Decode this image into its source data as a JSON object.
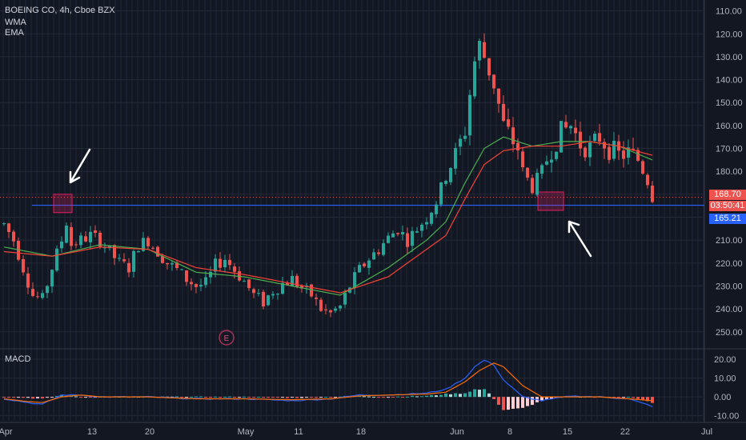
{
  "header": {
    "symbol": "BOEING CO, 4h, Cboe BZX",
    "indicators": [
      "WMA",
      "EMA"
    ]
  },
  "price_axis": {
    "ticks": [
      "250.00",
      "240.00",
      "230.00",
      "220.00",
      "210.00",
      "200.00",
      "190.00",
      "180.00",
      "170.00",
      "160.00",
      "150.00",
      "140.00",
      "130.00",
      "120.00",
      "110.00"
    ]
  },
  "macd_axis": {
    "label": "MACD",
    "ticks": [
      "20.00",
      "10.00",
      "0.00",
      "-10.00"
    ]
  },
  "time_axis": {
    "ticks": [
      "Apr",
      "13",
      "20",
      "May",
      "11",
      "18",
      "Jun",
      "8",
      "15",
      "22",
      "Jul"
    ]
  },
  "price_labels": {
    "last": "168.70",
    "countdown": "03:50:41",
    "line": "165.21"
  },
  "earnings_marker": "E",
  "colors": {
    "background": "#131722",
    "up": "#26a69a",
    "down": "#ef5350",
    "wma": "#4caf50",
    "ema": "#f44336",
    "macd_line": "#2962ff",
    "signal_line": "#ff6d00",
    "horizontal_line": "#2962ff",
    "highlight_box": "#e91e63"
  },
  "chart_data": [
    {
      "type": "candlestick",
      "title": "BOEING CO, 4h, Cboe BZX",
      "ylim": [
        104,
        253
      ],
      "x_ticks": [
        "Apr",
        "13",
        "20",
        "May",
        "11",
        "18",
        "Jun",
        "8",
        "15",
        "22",
        "Jul"
      ],
      "y_ticks": [
        110,
        120,
        130,
        140,
        150,
        160,
        170,
        180,
        190,
        200,
        210,
        220,
        230,
        240,
        250
      ],
      "horizontal_line": 165.21,
      "last_price": 168.7,
      "anchors": [
        [
          0,
          157
        ],
        [
          2,
          150
        ],
        [
          4,
          138
        ],
        [
          6,
          126
        ],
        [
          8,
          124
        ],
        [
          10,
          138
        ],
        [
          12,
          150
        ],
        [
          13,
          158
        ],
        [
          14,
          148
        ],
        [
          16,
          150
        ],
        [
          18,
          152
        ],
        [
          20,
          150
        ],
        [
          22,
          145
        ],
        [
          24,
          140
        ],
        [
          26,
          138
        ],
        [
          28,
          148
        ],
        [
          30,
          150
        ],
        [
          32,
          145
        ],
        [
          34,
          140
        ],
        [
          36,
          137
        ],
        [
          38,
          133
        ],
        [
          40,
          130
        ],
        [
          42,
          131
        ],
        [
          44,
          139
        ],
        [
          46,
          142
        ],
        [
          48,
          137
        ],
        [
          50,
          132
        ],
        [
          52,
          126
        ],
        [
          54,
          123
        ],
        [
          56,
          128
        ],
        [
          58,
          131
        ],
        [
          60,
          133
        ],
        [
          62,
          129
        ],
        [
          64,
          126
        ],
        [
          66,
          120
        ],
        [
          68,
          118
        ],
        [
          70,
          121
        ],
        [
          72,
          130
        ],
        [
          74,
          137
        ],
        [
          76,
          142
        ],
        [
          78,
          146
        ],
        [
          80,
          151
        ],
        [
          82,
          155
        ],
        [
          84,
          150
        ],
        [
          86,
          155
        ],
        [
          88,
          160
        ],
        [
          90,
          167
        ],
        [
          92,
          178
        ],
        [
          94,
          187
        ],
        [
          96,
          198
        ],
        [
          97,
          214
        ],
        [
          98,
          228
        ],
        [
          99,
          235
        ],
        [
          100,
          230
        ],
        [
          102,
          218
        ],
        [
          104,
          200
        ],
        [
          106,
          193
        ],
        [
          107,
          190
        ],
        [
          108,
          180
        ],
        [
          110,
          173
        ],
        [
          112,
          180
        ],
        [
          114,
          190
        ],
        [
          116,
          197
        ],
        [
          118,
          200
        ],
        [
          120,
          192
        ],
        [
          122,
          190
        ],
        [
          124,
          195
        ],
        [
          126,
          190
        ],
        [
          128,
          187
        ],
        [
          130,
          188
        ],
        [
          132,
          185
        ],
        [
          134,
          176
        ],
        [
          135,
          169
        ]
      ],
      "ma_series": [
        {
          "name": "WMA",
          "anchors": [
            [
              0,
              147
            ],
            [
              10,
              143
            ],
            [
              20,
              148
            ],
            [
              30,
              146
            ],
            [
              40,
              136
            ],
            [
              50,
              134
            ],
            [
              60,
              130
            ],
            [
              70,
              126
            ],
            [
              80,
              138
            ],
            [
              88,
              150
            ],
            [
              92,
              158
            ],
            [
              96,
              175
            ],
            [
              100,
              190
            ],
            [
              104,
              195
            ],
            [
              110,
              191
            ],
            [
              116,
              193
            ],
            [
              122,
              193
            ],
            [
              128,
              191
            ],
            [
              135,
              185
            ]
          ]
        },
        {
          "name": "EMA",
          "anchors": [
            [
              0,
              145
            ],
            [
              10,
              143
            ],
            [
              20,
              147
            ],
            [
              30,
              146
            ],
            [
              40,
              138
            ],
            [
              50,
              135
            ],
            [
              60,
              131
            ],
            [
              70,
              127
            ],
            [
              80,
              134
            ],
            [
              88,
              146
            ],
            [
              92,
              152
            ],
            [
              96,
              168
            ],
            [
              100,
              183
            ],
            [
              104,
              189
            ],
            [
              110,
              191
            ],
            [
              116,
              191
            ],
            [
              122,
              193
            ],
            [
              128,
              191
            ],
            [
              135,
              187
            ]
          ]
        }
      ]
    },
    {
      "type": "macd",
      "title": "MACD",
      "ylim": [
        -11,
        23
      ],
      "y_ticks": [
        20,
        10,
        0,
        -10
      ],
      "macd_anchors": [
        [
          0,
          -1
        ],
        [
          5,
          -3
        ],
        [
          8,
          -4
        ],
        [
          12,
          1
        ],
        [
          16,
          1
        ],
        [
          20,
          0
        ],
        [
          30,
          0
        ],
        [
          40,
          -1
        ],
        [
          50,
          -1
        ],
        [
          60,
          -2
        ],
        [
          68,
          -1
        ],
        [
          74,
          1
        ],
        [
          80,
          1
        ],
        [
          88,
          2
        ],
        [
          92,
          4
        ],
        [
          96,
          10
        ],
        [
          98,
          16
        ],
        [
          100,
          19.5
        ],
        [
          102,
          17
        ],
        [
          104,
          9
        ],
        [
          108,
          0
        ],
        [
          112,
          -2
        ],
        [
          118,
          0.5
        ],
        [
          124,
          0
        ],
        [
          130,
          -1
        ],
        [
          135,
          -5
        ]
      ],
      "signal_anchors": [
        [
          0,
          -1
        ],
        [
          5,
          -2.5
        ],
        [
          8,
          -3
        ],
        [
          12,
          0
        ],
        [
          16,
          1
        ],
        [
          20,
          0
        ],
        [
          30,
          0
        ],
        [
          40,
          -1
        ],
        [
          50,
          -1
        ],
        [
          60,
          -1.5
        ],
        [
          68,
          -1
        ],
        [
          74,
          0.5
        ],
        [
          80,
          1
        ],
        [
          88,
          1.5
        ],
        [
          92,
          2.5
        ],
        [
          96,
          8
        ],
        [
          99,
          14
        ],
        [
          102,
          18
        ],
        [
          104,
          16
        ],
        [
          108,
          6
        ],
        [
          112,
          0
        ],
        [
          118,
          0
        ],
        [
          124,
          0
        ],
        [
          130,
          -1
        ],
        [
          135,
          -2
        ]
      ]
    }
  ]
}
